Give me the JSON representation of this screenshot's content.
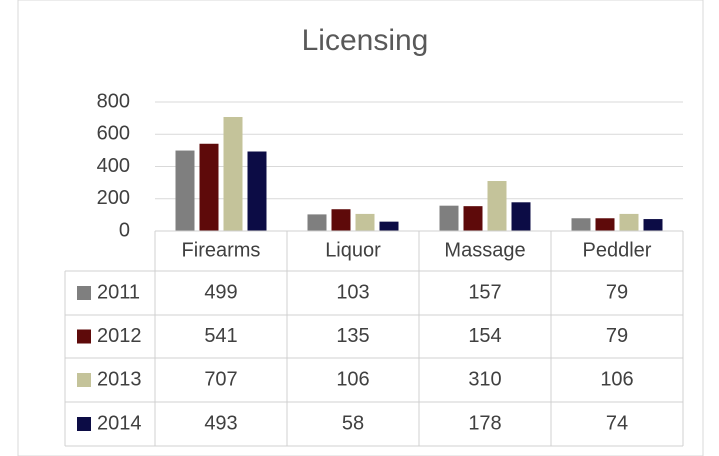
{
  "chart_data": {
    "type": "bar",
    "title": "Licensing",
    "categories": [
      "Firearms",
      "Liquor",
      "Massage",
      "Peddler"
    ],
    "series": [
      {
        "name": "2011",
        "color": "#7f7f7f",
        "values": [
          499,
          103,
          157,
          79
        ]
      },
      {
        "name": "2012",
        "color": "#5e0a0a",
        "values": [
          541,
          135,
          154,
          79
        ]
      },
      {
        "name": "2013",
        "color": "#c4c39a",
        "values": [
          707,
          106,
          310,
          106
        ]
      },
      {
        "name": "2014",
        "color": "#0c0c45",
        "values": [
          493,
          58,
          178,
          74
        ]
      }
    ],
    "ylim": [
      0,
      800
    ],
    "yticks": [
      0,
      200,
      400,
      600,
      800
    ],
    "grid": true,
    "data_table": true
  }
}
